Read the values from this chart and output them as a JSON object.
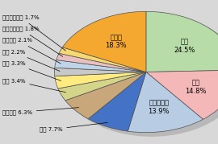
{
  "labels": [
    "米国",
    "中国",
    "フィリピン",
    "韓国",
    "ブラジル",
    "タイ",
    "台湾",
    "香港",
    "イギリス",
    "シンガポール",
    "インドネシア",
    "その他"
  ],
  "values": [
    24.5,
    14.8,
    13.9,
    7.7,
    6.3,
    3.4,
    3.3,
    2.2,
    2.1,
    1.8,
    1.7,
    18.3
  ],
  "colors": [
    "#b8dca8",
    "#f5b8b8",
    "#b8cce4",
    "#4472c4",
    "#c8a87a",
    "#d4d48a",
    "#ffeb80",
    "#c8c8c8",
    "#c0d4e8",
    "#e8c0c0",
    "#f5d870",
    "#f5a830"
  ],
  "background_color": "#d8d8d8",
  "shadow_color": "#b8b8b8",
  "edge_color": "#505050",
  "inside_label_indices": [
    0,
    1,
    2,
    11
  ],
  "inside_labels": [
    "米国\n24.5%",
    "中国\n14.8%",
    "フィリピン\n13.9%",
    "その他\n18.3%"
  ],
  "outside_label_indices": [
    10,
    9,
    8,
    7,
    6,
    5,
    4,
    3
  ],
  "outside_labels": [
    "インドネシア 1.7%",
    "シンガポール 1.8%",
    "イギリス 2.1%",
    "香港 2.2%",
    "台湾 3.3%",
    "タイ 3.4%",
    "ブラジル 6.3%",
    "韓国 7.7%"
  ],
  "startangle": 90,
  "label_fontsize": 5.0,
  "inside_fontsize": 6.0
}
